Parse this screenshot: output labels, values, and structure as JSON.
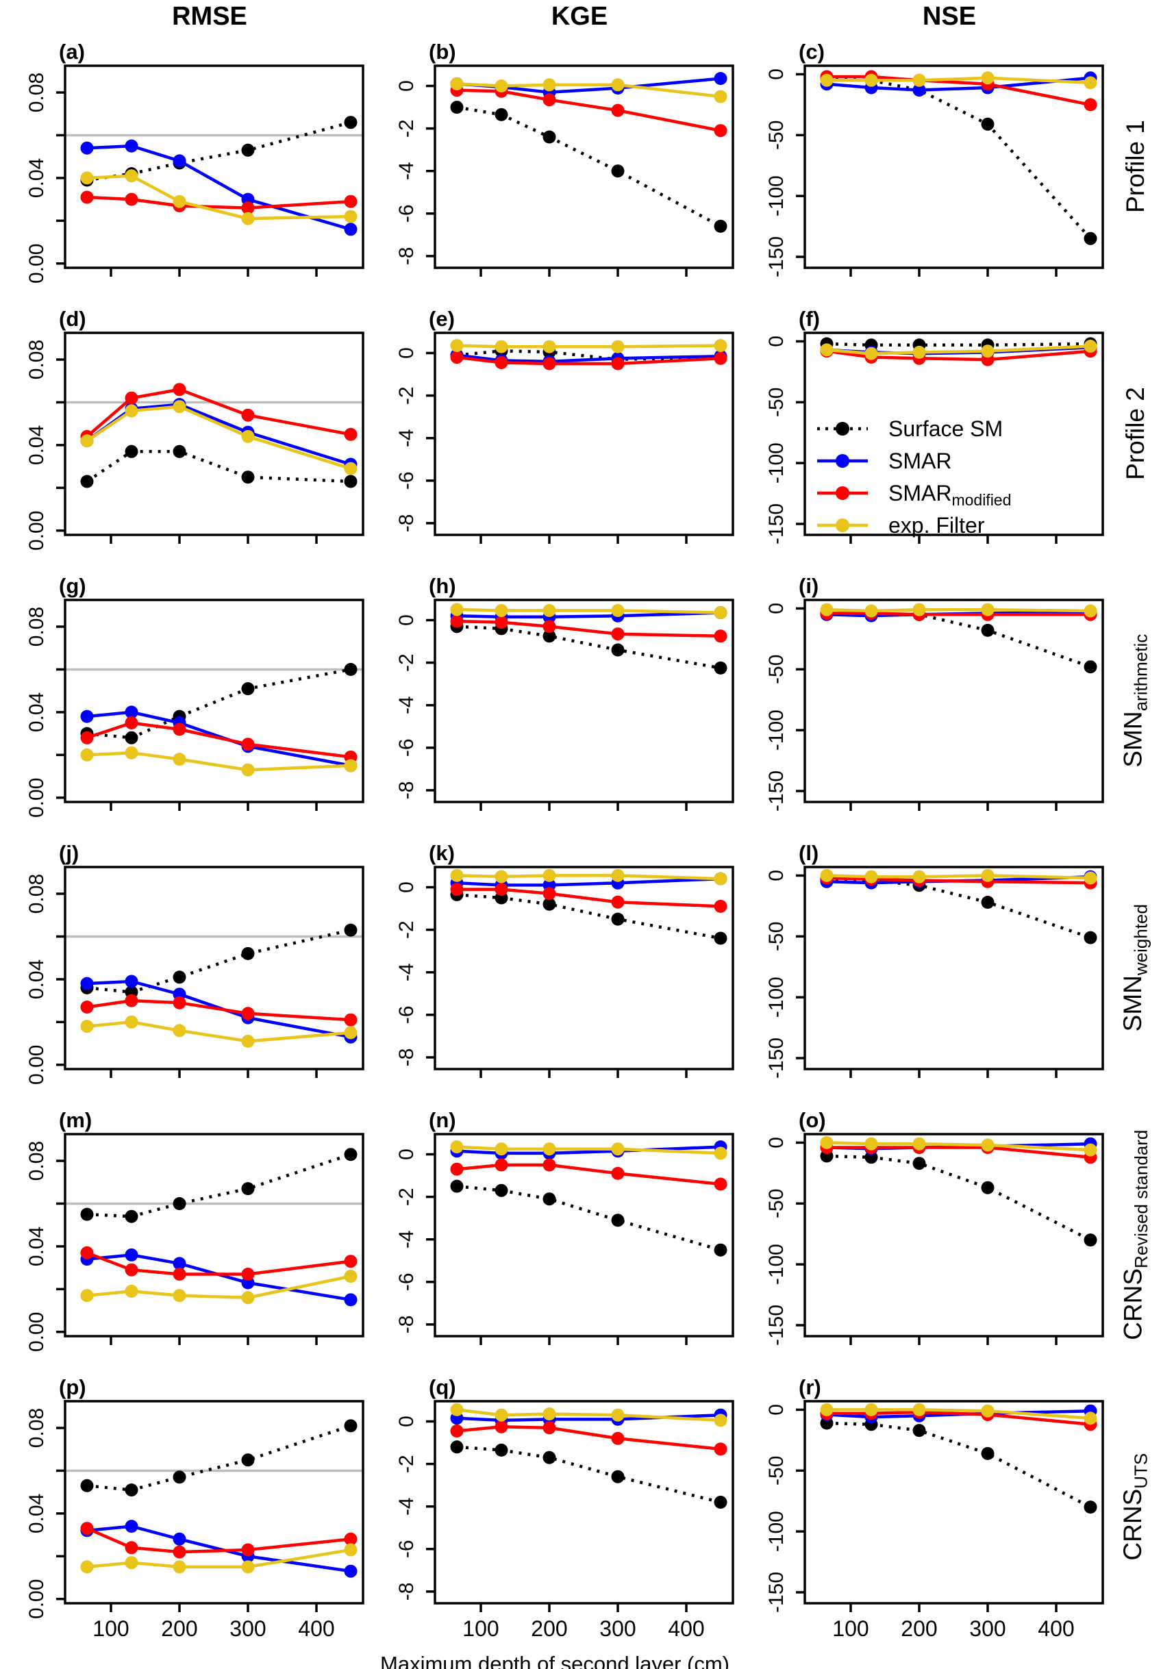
{
  "figure": {
    "column_titles": [
      "RMSE",
      "KGE",
      "NSE"
    ],
    "x_axis_title": "Maximum depth of second layer (cm)",
    "row_labels": [
      {
        "main": "Profile 1",
        "sub": ""
      },
      {
        "main": "Profile 2",
        "sub": ""
      },
      {
        "main": "SMN",
        "sub": "arithmetic"
      },
      {
        "main": "SMN",
        "sub": "weighted"
      },
      {
        "main": "CRNS",
        "sub": "Revised standard"
      },
      {
        "main": "CRNS",
        "sub": "UTS"
      }
    ]
  },
  "legend": {
    "position": "inside panel f, lower left",
    "items": [
      {
        "key": "surface",
        "label_main": "Surface SM",
        "label_sub": "",
        "color": "#000000",
        "line_style": "dotted"
      },
      {
        "key": "smar",
        "label_main": "SMAR",
        "label_sub": "",
        "color": "#0000FF",
        "line_style": "solid"
      },
      {
        "key": "smar_modified",
        "label_main": "SMAR",
        "label_sub": "modified",
        "color": "#FF0000",
        "line_style": "solid"
      },
      {
        "key": "exp_filter",
        "label_main": "exp. Filter",
        "label_sub": "",
        "color": "#E9C41A",
        "line_style": "solid"
      }
    ]
  },
  "colors": {
    "surface": "#000000",
    "smar": "#0000FF",
    "smar_modified": "#FF0000",
    "exp_filter": "#E9C41A",
    "reference_line": "#BEBEBE",
    "box": "#000000"
  },
  "chart_data": {
    "type": "line",
    "x": [
      65,
      130,
      200,
      300,
      450
    ],
    "xlim": [
      33,
      468
    ],
    "x_ticks": [
      {
        "v": 100,
        "label": "100"
      },
      {
        "v": 200,
        "label": "200"
      },
      {
        "v": 300,
        "label": "300"
      },
      {
        "v": 400,
        "label": "400"
      }
    ],
    "xlabel": "Maximum depth of second layer (cm)",
    "series_order": [
      "surface",
      "smar",
      "smar_modified",
      "exp_filter"
    ],
    "axes": {
      "RMSE": {
        "ylim": [
          -0.002,
          0.0925
        ],
        "ticks": [
          {
            "v": 0.0,
            "label": "0.00"
          },
          {
            "v": 0.02,
            "label": ""
          },
          {
            "v": 0.04,
            "label": "0.04"
          },
          {
            "v": 0.06,
            "label": ""
          },
          {
            "v": 0.08,
            "label": "0.08"
          }
        ],
        "reference_line": 0.06,
        "grid": false
      },
      "KGE": {
        "ylim": [
          -8.55,
          0.95
        ],
        "ticks": [
          {
            "v": 0,
            "label": "0"
          },
          {
            "v": -2,
            "label": "-2"
          },
          {
            "v": -4,
            "label": "-4"
          },
          {
            "v": -6,
            "label": "-6"
          },
          {
            "v": -8,
            "label": "-8"
          }
        ],
        "reference_line": null,
        "grid": false
      },
      "NSE": {
        "ylim": [
          -159,
          7
        ],
        "ticks": [
          {
            "v": 0,
            "label": "0"
          },
          {
            "v": -50,
            "label": "-50"
          },
          {
            "v": -100,
            "label": "-100"
          },
          {
            "v": -150,
            "label": "-150"
          }
        ],
        "reference_line": null,
        "grid": false
      }
    },
    "panels": [
      {
        "letter": "(a)",
        "metric": "RMSE",
        "row_group": "Profile 1",
        "series": {
          "surface": [
            0.039,
            0.042,
            0.047,
            0.053,
            0.066
          ],
          "smar": [
            0.054,
            0.055,
            0.048,
            0.03,
            0.016
          ],
          "smar_modified": [
            0.031,
            0.03,
            0.027,
            0.026,
            0.029
          ],
          "exp_filter": [
            0.04,
            0.041,
            0.029,
            0.021,
            0.022
          ]
        }
      },
      {
        "letter": "(b)",
        "metric": "KGE",
        "row_group": "Profile 1",
        "series": {
          "surface": [
            -1.0,
            -1.35,
            -2.4,
            -4.0,
            -6.6
          ],
          "smar": [
            0.1,
            -0.05,
            -0.3,
            -0.1,
            0.35
          ],
          "smar_modified": [
            -0.2,
            -0.25,
            -0.65,
            -1.15,
            -2.1
          ],
          "exp_filter": [
            0.1,
            0.0,
            0.05,
            0.05,
            -0.5
          ]
        }
      },
      {
        "letter": "(c)",
        "metric": "NSE",
        "row_group": "Profile 1",
        "series": {
          "surface": [
            -4,
            -5,
            -13,
            -41,
            -135
          ],
          "smar": [
            -8,
            -11,
            -13,
            -11,
            -3
          ],
          "smar_modified": [
            -2,
            -2,
            -5,
            -8,
            -25
          ],
          "exp_filter": [
            -5,
            -5,
            -5,
            -3,
            -7
          ]
        }
      },
      {
        "letter": "(d)",
        "metric": "RMSE",
        "row_group": "Profile 2",
        "series": {
          "surface": [
            0.023,
            0.037,
            0.037,
            0.025,
            0.023
          ],
          "smar": [
            0.042,
            0.057,
            0.059,
            0.046,
            0.031
          ],
          "smar_modified": [
            0.044,
            0.062,
            0.066,
            0.054,
            0.045
          ],
          "exp_filter": [
            0.042,
            0.056,
            0.058,
            0.044,
            0.029
          ]
        }
      },
      {
        "letter": "(e)",
        "metric": "KGE",
        "row_group": "Profile 2",
        "series": {
          "surface": [
            -0.1,
            0.1,
            0.05,
            -0.3,
            -0.2
          ],
          "smar": [
            -0.1,
            -0.35,
            -0.4,
            -0.25,
            -0.15
          ],
          "smar_modified": [
            -0.2,
            -0.45,
            -0.5,
            -0.5,
            -0.25
          ],
          "exp_filter": [
            0.35,
            0.3,
            0.3,
            0.3,
            0.35
          ]
        }
      },
      {
        "letter": "(f)",
        "metric": "NSE",
        "row_group": "Profile 2",
        "has_legend": true,
        "series": {
          "surface": [
            -2,
            -3,
            -3,
            -3,
            -2
          ],
          "smar": [
            -7,
            -9,
            -10,
            -9,
            -5
          ],
          "smar_modified": [
            -8,
            -13,
            -14,
            -15,
            -8
          ],
          "exp_filter": [
            -7,
            -10,
            -9,
            -8,
            -4
          ]
        }
      },
      {
        "letter": "(g)",
        "metric": "RMSE",
        "row_group": "SMN arithmetic",
        "series": {
          "surface": [
            0.03,
            0.028,
            0.038,
            0.051,
            0.06
          ],
          "smar": [
            0.038,
            0.04,
            0.035,
            0.024,
            0.015
          ],
          "smar_modified": [
            0.028,
            0.035,
            0.032,
            0.025,
            0.019
          ],
          "exp_filter": [
            0.02,
            0.021,
            0.018,
            0.013,
            0.015
          ]
        }
      },
      {
        "letter": "(h)",
        "metric": "KGE",
        "row_group": "SMN arithmetic",
        "series": {
          "surface": [
            -0.3,
            -0.4,
            -0.75,
            -1.4,
            -2.25
          ],
          "smar": [
            0.2,
            0.15,
            0.15,
            0.2,
            0.35
          ],
          "smar_modified": [
            -0.05,
            -0.1,
            -0.3,
            -0.65,
            -0.75
          ],
          "exp_filter": [
            0.5,
            0.45,
            0.45,
            0.45,
            0.35
          ]
        }
      },
      {
        "letter": "(i)",
        "metric": "NSE",
        "row_group": "SMN arithmetic",
        "series": {
          "surface": [
            -4,
            -5,
            -5,
            -18,
            -48
          ],
          "smar": [
            -5,
            -6,
            -5,
            -4,
            -3
          ],
          "smar_modified": [
            -4,
            -4,
            -5,
            -5,
            -5
          ],
          "exp_filter": [
            -1,
            -2,
            -1,
            -1,
            -2
          ]
        }
      },
      {
        "letter": "(j)",
        "metric": "RMSE",
        "row_group": "SMN weighted",
        "series": {
          "surface": [
            0.036,
            0.034,
            0.041,
            0.052,
            0.063
          ],
          "smar": [
            0.038,
            0.039,
            0.033,
            0.022,
            0.013
          ],
          "smar_modified": [
            0.027,
            0.03,
            0.029,
            0.024,
            0.021
          ],
          "exp_filter": [
            0.018,
            0.02,
            0.016,
            0.011,
            0.015
          ]
        }
      },
      {
        "letter": "(k)",
        "metric": "KGE",
        "row_group": "SMN weighted",
        "series": {
          "surface": [
            -0.35,
            -0.5,
            -0.8,
            -1.5,
            -2.4
          ],
          "smar": [
            0.2,
            0.1,
            0.1,
            0.2,
            0.4
          ],
          "smar_modified": [
            -0.1,
            -0.1,
            -0.3,
            -0.7,
            -0.9
          ],
          "exp_filter": [
            0.55,
            0.5,
            0.55,
            0.55,
            0.4
          ]
        }
      },
      {
        "letter": "(l)",
        "metric": "NSE",
        "row_group": "SMN weighted",
        "series": {
          "surface": [
            -3,
            -4,
            -8,
            -22,
            -51
          ],
          "smar": [
            -5,
            -6,
            -5,
            -4,
            -1
          ],
          "smar_modified": [
            -2,
            -3,
            -4,
            -5,
            -6
          ],
          "exp_filter": [
            0,
            -1,
            -1,
            0,
            -2
          ]
        }
      },
      {
        "letter": "(m)",
        "metric": "RMSE",
        "row_group": "CRNS Revised standard",
        "series": {
          "surface": [
            0.055,
            0.054,
            0.06,
            0.067,
            0.083
          ],
          "smar": [
            0.034,
            0.036,
            0.032,
            0.023,
            0.015
          ],
          "smar_modified": [
            0.037,
            0.029,
            0.027,
            0.027,
            0.033
          ],
          "exp_filter": [
            0.017,
            0.019,
            0.017,
            0.016,
            0.026
          ]
        }
      },
      {
        "letter": "(n)",
        "metric": "KGE",
        "row_group": "CRNS Revised standard",
        "series": {
          "surface": [
            -1.5,
            -1.7,
            -2.1,
            -3.1,
            -4.5
          ],
          "smar": [
            0.15,
            0.05,
            0.05,
            0.15,
            0.35
          ],
          "smar_modified": [
            -0.7,
            -0.5,
            -0.5,
            -0.9,
            -1.4
          ],
          "exp_filter": [
            0.35,
            0.25,
            0.25,
            0.25,
            0.05
          ]
        }
      },
      {
        "letter": "(o)",
        "metric": "NSE",
        "row_group": "CRNS Revised standard",
        "series": {
          "surface": [
            -11,
            -12,
            -17,
            -37,
            -80
          ],
          "smar": [
            -4,
            -5,
            -4,
            -3,
            -1
          ],
          "smar_modified": [
            -4,
            -4,
            -4,
            -4,
            -12
          ],
          "exp_filter": [
            0,
            -1,
            -1,
            -2,
            -6
          ]
        }
      },
      {
        "letter": "(p)",
        "metric": "RMSE",
        "row_group": "CRNS UTS",
        "series": {
          "surface": [
            0.053,
            0.051,
            0.057,
            0.065,
            0.081
          ],
          "smar": [
            0.032,
            0.034,
            0.028,
            0.02,
            0.013
          ],
          "smar_modified": [
            0.033,
            0.024,
            0.022,
            0.023,
            0.028
          ],
          "exp_filter": [
            0.015,
            0.017,
            0.015,
            0.015,
            0.023
          ]
        }
      },
      {
        "letter": "(q)",
        "metric": "KGE",
        "row_group": "CRNS UTS",
        "series": {
          "surface": [
            -1.2,
            -1.35,
            -1.7,
            -2.6,
            -3.8
          ],
          "smar": [
            0.15,
            0.05,
            0.1,
            0.1,
            0.3
          ],
          "smar_modified": [
            -0.45,
            -0.25,
            -0.3,
            -0.8,
            -1.3
          ],
          "exp_filter": [
            0.55,
            0.3,
            0.35,
            0.3,
            0.05
          ]
        }
      },
      {
        "letter": "(r)",
        "metric": "NSE",
        "row_group": "CRNS UTS",
        "series": {
          "surface": [
            -11,
            -12,
            -17,
            -36,
            -80
          ],
          "smar": [
            -4,
            -6,
            -5,
            -3,
            -1
          ],
          "smar_modified": [
            -3,
            -3,
            -2,
            -4,
            -12
          ],
          "exp_filter": [
            0,
            0,
            0,
            -1,
            -7
          ]
        }
      }
    ]
  }
}
